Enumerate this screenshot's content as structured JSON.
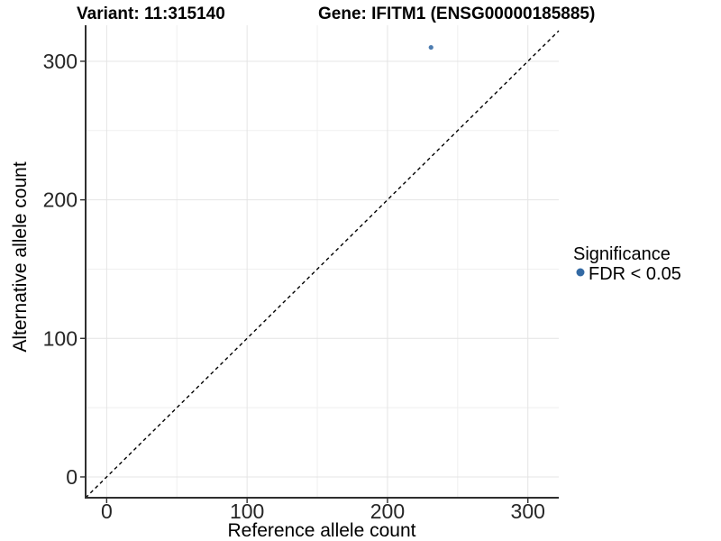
{
  "header": {
    "variant_title": "Variant: 11:315140",
    "gene_title": "Gene: IFITM1 (ENSG00000185885)"
  },
  "legend": {
    "title": "Significance",
    "items": [
      {
        "label": "FDR < 0.05",
        "marker_color": "#336aa4"
      }
    ]
  },
  "chart_data": {
    "type": "scatter",
    "title": "Variant: 11:315140  |  Gene: IFITM1 (ENSG00000185885)",
    "xlabel": "Reference allele count",
    "ylabel": "Alternative allele count",
    "xlim": [
      -15,
      322
    ],
    "ylim": [
      -15,
      326
    ],
    "x_ticks": [
      0,
      100,
      200,
      300
    ],
    "y_ticks": [
      0,
      100,
      200,
      300
    ],
    "minor_grid_ticks_x": [
      50,
      150,
      250
    ],
    "minor_grid_ticks_y": [
      50,
      150,
      250
    ],
    "grid": "on",
    "legend_position": "right",
    "points": [
      {
        "x": 231,
        "y": 310,
        "series": "FDR < 0.05"
      }
    ],
    "identity_line": {
      "style": "dashed",
      "slope": 1,
      "intercept": 0
    }
  },
  "colors": {
    "point": "#4d7cb0",
    "legend_marker": "#336aa4",
    "grid_major": "#e4e4e4",
    "grid_minor": "#efefef",
    "axis_line": "#2f2f2f",
    "identity_line": "#000000",
    "background": "#ffffff"
  }
}
